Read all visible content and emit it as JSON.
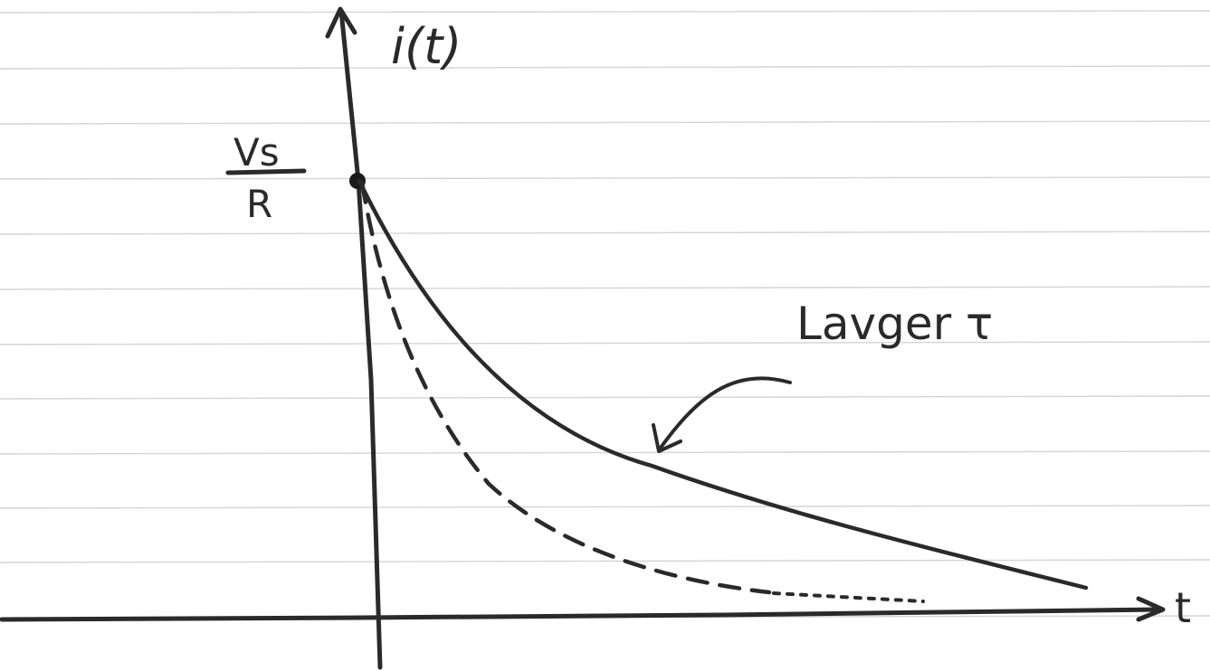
{
  "diagram": {
    "y_axis_label": "i(t)",
    "x_axis_label": "t",
    "initial_value": {
      "numerator": "Vs",
      "denominator": "R"
    },
    "annotation": "Lavger τ",
    "curves": [
      {
        "style": "solid"
      },
      {
        "style": "dashed"
      }
    ]
  },
  "colors": {
    "ink": "#2a2a2a",
    "rule_lines": "#d4d4d4",
    "paper": "#ffffff"
  }
}
